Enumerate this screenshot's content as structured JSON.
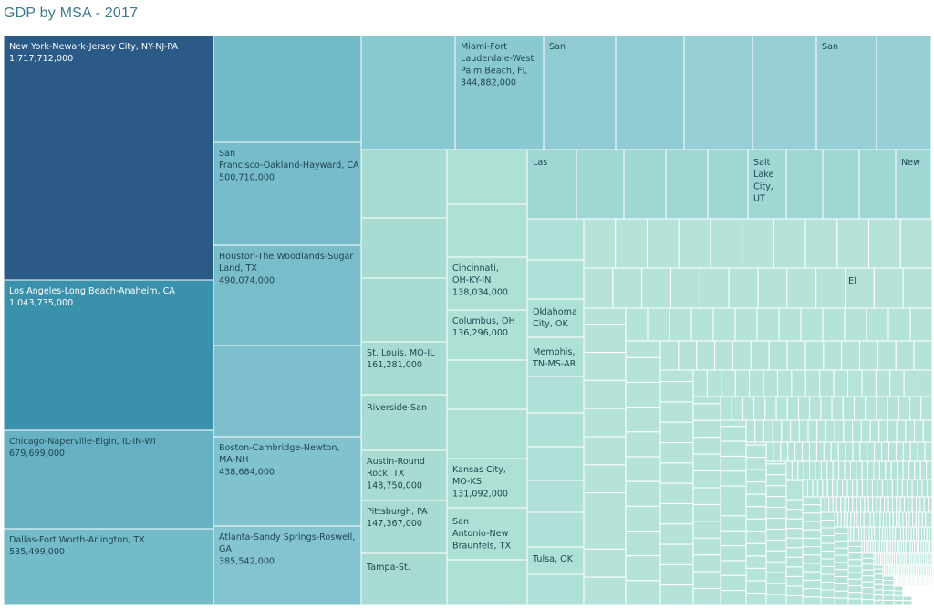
{
  "title": "GDP by MSA - 2017",
  "chart_data": {
    "type": "treemap",
    "title": "GDP by MSA - 2017",
    "value_format": "thousands-separated",
    "color_scale": {
      "low": "#b8e3d9",
      "mid": "#3f94ae",
      "high": "#285783"
    },
    "labeled_items": [
      {
        "name": "New York-Newark-Jersey City, NY-NJ-PA",
        "value": 1717712000
      },
      {
        "name": "Los Angeles-Long Beach-Anaheim, CA",
        "value": 1043735000
      },
      {
        "name": "Chicago-Naperville-Elgin, IL-IN-WI",
        "value": 679699000
      },
      {
        "name": "Dallas-Fort Worth-Arlington, TX",
        "value": 535499000
      },
      {
        "name": "San Francisco-Oakland-Hayward, CA",
        "value": 500710000
      },
      {
        "name": "Houston-The Woodlands-Sugar Land, TX",
        "value": 490074000
      },
      {
        "name": "Boston-Cambridge-Newton, MA-NH",
        "value": 438684000
      },
      {
        "name": "Atlanta-Sandy Springs-Roswell, GA",
        "value": 385542000
      },
      {
        "name": "Miami-Fort Lauderdale-West Palm Beach, FL",
        "value": 344882000
      },
      {
        "name": "St. Louis, MO-IL",
        "value": 161281000
      },
      {
        "name": "Austin-Round Rock, TX",
        "value": 148750000
      },
      {
        "name": "Pittsburgh, PA",
        "value": 147367000
      },
      {
        "name": "Cincinnati, OH-KY-IN",
        "value": 138034000
      },
      {
        "name": "Columbus, OH",
        "value": 136296000
      },
      {
        "name": "Kansas City, MO-KS",
        "value": 131092000
      }
    ],
    "partial_labels": [
      "San",
      "San",
      "Las",
      "Salt Lake City, UT",
      "New",
      "Oklahoma City, OK",
      "Memphis, TN-MS-AR",
      "Riverside-San",
      "San Antonio-New Braunfels, TX",
      "Tampa-St.",
      "Tulsa, OK",
      "El"
    ]
  }
}
